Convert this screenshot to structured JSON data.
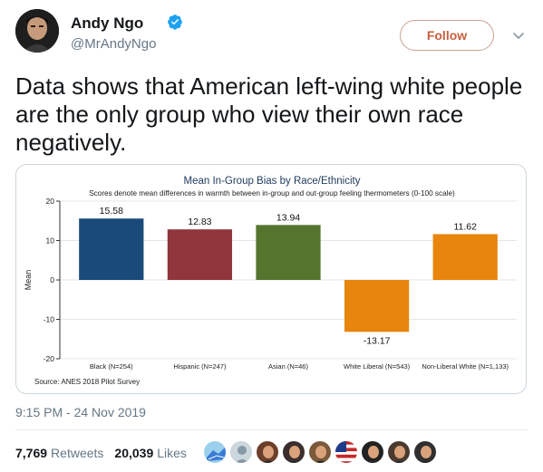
{
  "author": {
    "name": "Andy Ngo",
    "handle": "@MrAndyNgo",
    "verified": true
  },
  "follow_label": "Follow",
  "tweet_text": "Data shows that American left-wing white people are the only group who view their own race negatively.",
  "timestamp": "9:15 PM - 24 Nov 2019",
  "stats": {
    "retweets_count": "7,769",
    "retweets_label": "Retweets",
    "likes_count": "20,039",
    "likes_label": "Likes"
  },
  "likers": [
    {
      "icon": "map-avatar"
    },
    {
      "icon": "default-avatar"
    },
    {
      "icon": "face-avatar"
    },
    {
      "icon": "face-avatar"
    },
    {
      "icon": "face-avatar"
    },
    {
      "icon": "flag-avatar"
    },
    {
      "icon": "face-avatar"
    },
    {
      "icon": "face-avatar"
    },
    {
      "icon": "face-avatar"
    }
  ],
  "colors": {
    "follow_text": "#c55f3e",
    "verified": "#1da1f2",
    "bar_black": "#1a4a7a",
    "bar_hispanic": "#90353b",
    "bar_asian": "#55752f",
    "bar_white_liberal": "#e8850c",
    "bar_nonliberal_white": "#e8850c"
  },
  "chart_data": {
    "type": "bar",
    "title": "Mean In-Group Bias by Race/Ethnicity",
    "subtitle": "Scores denote mean differences in warmth between in-group and out-group feeling thermometers (0-100 scale)",
    "ylabel": "Mean",
    "xlabel": "",
    "ylim": [
      -20,
      20
    ],
    "yticks": [
      20,
      10,
      0,
      -10,
      -20
    ],
    "categories": [
      "Black (N=254)",
      "Hispanic (N=247)",
      "Asian (N=46)",
      "White Liberal (N=543)",
      "Non-Liberal White (N=1,133)"
    ],
    "values": [
      15.58,
      12.83,
      13.94,
      -13.17,
      11.62
    ],
    "value_labels": [
      "15.58",
      "12.83",
      "13.94",
      "-13.17",
      "11.62"
    ],
    "source": "Source: ANES 2018 Pilot Survey",
    "grid": true,
    "legend": "none"
  }
}
